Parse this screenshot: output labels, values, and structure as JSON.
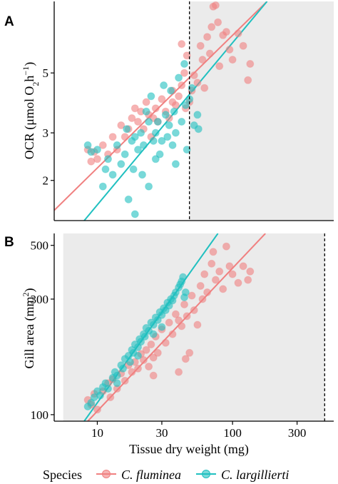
{
  "colors": {
    "fluminea": "#F08080",
    "largillierti": "#20C0C0",
    "shade": "#EBEBEB",
    "axis": "#000000"
  },
  "legend": {
    "title": "Species",
    "items": [
      "C. fluminea",
      "C. largillierti"
    ]
  },
  "chart_data": [
    {
      "type": "scatter",
      "panel": "A",
      "ylabel": "OCR (μmol O2h−1)",
      "xlabel": "",
      "x_scale": "log",
      "y_scale": "log",
      "xlim": [
        4.8,
        560
      ],
      "ylim": [
        1.42,
        9.2
      ],
      "yticks": [
        2,
        3,
        5
      ],
      "xticks": [],
      "grid": false,
      "shaded_region_x": [
        48,
        560
      ],
      "threshold_x": 48,
      "series": [
        {
          "name": "C. fluminea",
          "fit_line": {
            "x": [
              4.8,
              180
            ],
            "y": [
              1.55,
              9.2
            ]
          },
          "points": [
            [
              8.5,
              2.6
            ],
            [
              9,
              2.35
            ],
            [
              9.5,
              2.55
            ],
            [
              10,
              2.4
            ],
            [
              11,
              2.7
            ],
            [
              12,
              2.5
            ],
            [
              13,
              2.9
            ],
            [
              14,
              2.6
            ],
            [
              15,
              3.2
            ],
            [
              16,
              2.9
            ],
            [
              17,
              3.1
            ],
            [
              18,
              3.4
            ],
            [
              19,
              3.7
            ],
            [
              20,
              3.3
            ],
            [
              21,
              3.6
            ],
            [
              22,
              3.1
            ],
            [
              23,
              3.9
            ],
            [
              24,
              3.5
            ],
            [
              25,
              2.9
            ],
            [
              26,
              3.4
            ],
            [
              27,
              3.7
            ],
            [
              28,
              3.3
            ],
            [
              30,
              4.0
            ],
            [
              32,
              3.6
            ],
            [
              34,
              3.4
            ],
            [
              36,
              4.3
            ],
            [
              38,
              3.8
            ],
            [
              40,
              4.1
            ],
            [
              42,
              4.5
            ],
            [
              44,
              5.0
            ],
            [
              45,
              3.7
            ],
            [
              46,
              5.8
            ],
            [
              48,
              3.9
            ],
            [
              50,
              4.3
            ],
            [
              52,
              4.9
            ],
            [
              55,
              4.6
            ],
            [
              58,
              6.3
            ],
            [
              60,
              5.6
            ],
            [
              62,
              4.4
            ],
            [
              65,
              6.8
            ],
            [
              68,
              5.9
            ],
            [
              70,
              7.4
            ],
            [
              72,
              8.8
            ],
            [
              75,
              8.9
            ],
            [
              78,
              7.7
            ],
            [
              80,
              5.3
            ],
            [
              85,
              6.9
            ],
            [
              90,
              7.1
            ],
            [
              95,
              6.1
            ],
            [
              100,
              5.6
            ],
            [
              110,
              7.0
            ],
            [
              120,
              6.3
            ],
            [
              130,
              4.7
            ],
            [
              135,
              5.4
            ],
            [
              42,
              6.4
            ],
            [
              36,
              3.9
            ]
          ]
        },
        {
          "name": "C. largillierti",
          "fit_line": {
            "x": [
              8,
              180
            ],
            "y": [
              1.42,
              9.2
            ]
          },
          "points": [
            [
              8.5,
              2.7
            ],
            [
              9,
              2.55
            ],
            [
              10,
              2.6
            ],
            [
              11,
              1.9
            ],
            [
              11.5,
              2.2
            ],
            [
              12,
              2.4
            ],
            [
              13,
              2.1
            ],
            [
              14,
              2.7
            ],
            [
              15,
              2.3
            ],
            [
              16,
              2.5
            ],
            [
              16.5,
              3.1
            ],
            [
              17,
              1.7
            ],
            [
              18,
              2.8
            ],
            [
              18.5,
              2.2
            ],
            [
              19,
              1.5
            ],
            [
              20,
              2.6
            ],
            [
              21,
              3.0
            ],
            [
              21.5,
              2.1
            ],
            [
              22,
              2.7
            ],
            [
              23,
              3.6
            ],
            [
              24,
              1.9
            ],
            [
              25,
              4.1
            ],
            [
              26,
              2.8
            ],
            [
              27,
              3.0
            ],
            [
              28,
              3.3
            ],
            [
              29,
              2.5
            ],
            [
              30,
              2.8
            ],
            [
              31,
              4.5
            ],
            [
              32,
              3.5
            ],
            [
              33,
              2.9
            ],
            [
              34,
              3.2
            ],
            [
              35,
              4.3
            ],
            [
              36,
              2.7
            ],
            [
              37,
              3.6
            ],
            [
              38,
              3.0
            ],
            [
              40,
              4.8
            ],
            [
              42,
              3.3
            ],
            [
              44,
              5.4
            ],
            [
              45,
              3.8
            ],
            [
              46,
              2.6
            ],
            [
              48,
              4.0
            ],
            [
              50,
              4.4
            ],
            [
              52,
              3.2
            ],
            [
              55,
              3.5
            ],
            [
              56,
              3.1
            ],
            [
              24,
              3.3
            ],
            [
              27,
              2.4
            ],
            [
              38,
              2.3
            ],
            [
              19,
              2.9
            ]
          ]
        }
      ]
    },
    {
      "type": "scatter",
      "panel": "B",
      "ylabel": "Gill area (mm2)",
      "xlabel": "Tissue dry weight (mg)",
      "x_scale": "log",
      "y_scale": "log",
      "xlim": [
        4.8,
        560
      ],
      "ylim": [
        94,
        560
      ],
      "xticks": [
        10,
        30,
        100,
        300
      ],
      "yticks": [
        100,
        300,
        500
      ],
      "grid": false,
      "shaded_region_x": [
        5.6,
        480
      ],
      "threshold_x": 480,
      "series": [
        {
          "name": "C. fluminea",
          "fit_line": {
            "x": [
              8.5,
              175
            ],
            "y": [
              94,
              560
            ]
          },
          "points": [
            [
              8.5,
              115
            ],
            [
              9,
              110
            ],
            [
              9.5,
              122
            ],
            [
              10,
              105
            ],
            [
              11,
              125
            ],
            [
              12,
              135
            ],
            [
              12.5,
              118
            ],
            [
              13,
              140
            ],
            [
              14,
              128
            ],
            [
              15,
              148
            ],
            [
              16,
              138
            ],
            [
              17,
              160
            ],
            [
              18,
              150
            ],
            [
              19,
              165
            ],
            [
              20,
              155
            ],
            [
              21,
              178
            ],
            [
              22,
              168
            ],
            [
              23,
              185
            ],
            [
              24,
              158
            ],
            [
              25,
              195
            ],
            [
              26,
              172
            ],
            [
              27,
              210
            ],
            [
              28,
              180
            ],
            [
              30,
              225
            ],
            [
              32,
              198
            ],
            [
              34,
              240
            ],
            [
              36,
              215
            ],
            [
              38,
              260
            ],
            [
              40,
              245
            ],
            [
              42,
              232
            ],
            [
              44,
              285
            ],
            [
              46,
              255
            ],
            [
              48,
              180
            ],
            [
              50,
              310
            ],
            [
              52,
              270
            ],
            [
              55,
              235
            ],
            [
              58,
              340
            ],
            [
              60,
              300
            ],
            [
              62,
              380
            ],
            [
              65,
              320
            ],
            [
              70,
              420
            ],
            [
              72,
              470
            ],
            [
              75,
              360
            ],
            [
              80,
              390
            ],
            [
              85,
              330
            ],
            [
              90,
              495
            ],
            [
              95,
              410
            ],
            [
              100,
              380
            ],
            [
              110,
              350
            ],
            [
              120,
              410
            ],
            [
              130,
              360
            ],
            [
              135,
              390
            ],
            [
              40,
              150
            ],
            [
              45,
              170
            ],
            [
              26,
              145
            ]
          ]
        },
        {
          "name": "C. largillierti",
          "fit_line": {
            "x": [
              8,
              78
            ],
            "y": [
              94,
              560
            ]
          },
          "points": [
            [
              8.5,
              108
            ],
            [
              9,
              112
            ],
            [
              9.5,
              118
            ],
            [
              10,
              125
            ],
            [
              10.5,
              120
            ],
            [
              11,
              130
            ],
            [
              11.5,
              135
            ],
            [
              12,
              128
            ],
            [
              13,
              142
            ],
            [
              13.5,
              150
            ],
            [
              14,
              145
            ],
            [
              15,
              160
            ],
            [
              15.5,
              155
            ],
            [
              16,
              170
            ],
            [
              17,
              175
            ],
            [
              17.5,
              165
            ],
            [
              18,
              185
            ],
            [
              18.5,
              180
            ],
            [
              19,
              195
            ],
            [
              20,
              190
            ],
            [
              20.5,
              205
            ],
            [
              21,
              200
            ],
            [
              22,
              215
            ],
            [
              22.5,
              210
            ],
            [
              23,
              228
            ],
            [
              24,
              222
            ],
            [
              25,
              240
            ],
            [
              26,
              235
            ],
            [
              27,
              252
            ],
            [
              28,
              246
            ],
            [
              29,
              265
            ],
            [
              30,
              258
            ],
            [
              31,
              275
            ],
            [
              32,
              270
            ],
            [
              33,
              290
            ],
            [
              34,
              282
            ],
            [
              35,
              300
            ],
            [
              36,
              296
            ],
            [
              37,
              310
            ],
            [
              38,
              320
            ],
            [
              40,
              335
            ],
            [
              41,
              345
            ],
            [
              42,
              355
            ],
            [
              43,
              370
            ],
            [
              44,
              305
            ],
            [
              45,
              320
            ],
            [
              30,
              230
            ],
            [
              26,
              215
            ],
            [
              20,
              175
            ],
            [
              14,
              135
            ]
          ]
        }
      ]
    }
  ]
}
